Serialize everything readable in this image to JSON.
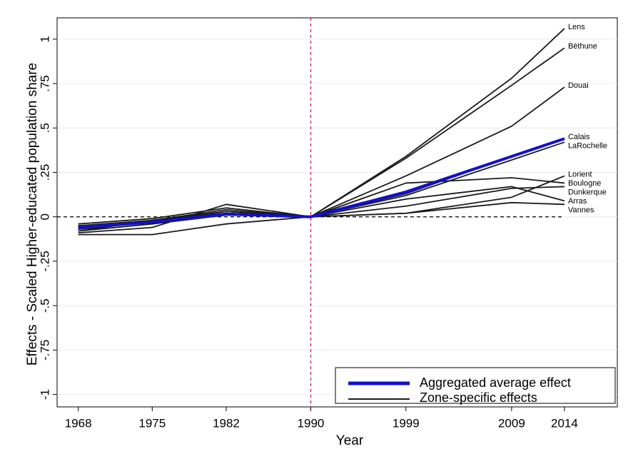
{
  "chart_data": {
    "type": "line",
    "x_label": "Year",
    "y_label": "Effects - Scaled Higher-educated population share",
    "x": [
      1968,
      1975,
      1982,
      1990,
      1999,
      2009,
      2014
    ],
    "xlim": [
      1966,
      2019
    ],
    "xticks": [
      1968,
      1975,
      1982,
      1990,
      1999,
      2009,
      2014
    ],
    "ylim": [
      -1.07,
      1.12
    ],
    "yticks": [
      -1,
      {
        "value": -0.75,
        "label": "-.75"
      },
      {
        "value": -0.5,
        "label": "-.5"
      },
      {
        "value": -0.25,
        "label": "-.25"
      },
      0,
      {
        "value": 0.25,
        "label": ".25"
      },
      {
        "value": 0.5,
        "label": ".5"
      },
      {
        "value": 0.75,
        "label": ".75"
      },
      1
    ],
    "grid": true,
    "vline": 1990,
    "hline": 0,
    "zone_color": "#1a1a1a",
    "zone_legend": "Zone-specific effects",
    "series": [
      {
        "name": "Lens",
        "values": [
          -0.05,
          -0.03,
          0.02,
          0,
          0.34,
          0.78,
          1.06
        ]
      },
      {
        "name": "Béthune",
        "values": [
          -0.07,
          -0.03,
          0.03,
          0,
          0.33,
          0.74,
          0.95
        ]
      },
      {
        "name": "Douai",
        "values": [
          -0.08,
          -0.04,
          0.01,
          0,
          0.23,
          0.51,
          0.73
        ]
      },
      {
        "name": "Calais",
        "values": [
          -0.06,
          -0.02,
          0.02,
          0,
          0.13,
          0.34,
          0.44
        ]
      },
      {
        "name": "LaRochelle",
        "values": [
          -0.05,
          -0.02,
          0.03,
          0,
          0.12,
          0.32,
          0.42
        ]
      },
      {
        "name": "Lorient",
        "values": [
          -0.04,
          -0.01,
          0.05,
          0,
          0.02,
          0.11,
          0.23
        ]
      },
      {
        "name": "Boulogne",
        "values": [
          -0.09,
          -0.06,
          0.07,
          0,
          0.19,
          0.22,
          0.19
        ]
      },
      {
        "name": "Dunkerque",
        "values": [
          -0.1,
          -0.1,
          -0.04,
          0,
          0.06,
          0.16,
          0.17
        ]
      },
      {
        "name": "Arras",
        "values": [
          -0.06,
          -0.03,
          0.02,
          0,
          0.1,
          0.17,
          0.09
        ]
      },
      {
        "name": "Vannes",
        "values": [
          -0.08,
          -0.02,
          0.04,
          0,
          0.02,
          0.08,
          0.07
        ]
      }
    ],
    "average": {
      "name": "Aggregated average effect",
      "color": "#1010d0",
      "values": [
        -0.06,
        -0.03,
        0.015,
        0,
        0.14,
        0.34,
        0.44
      ]
    }
  }
}
